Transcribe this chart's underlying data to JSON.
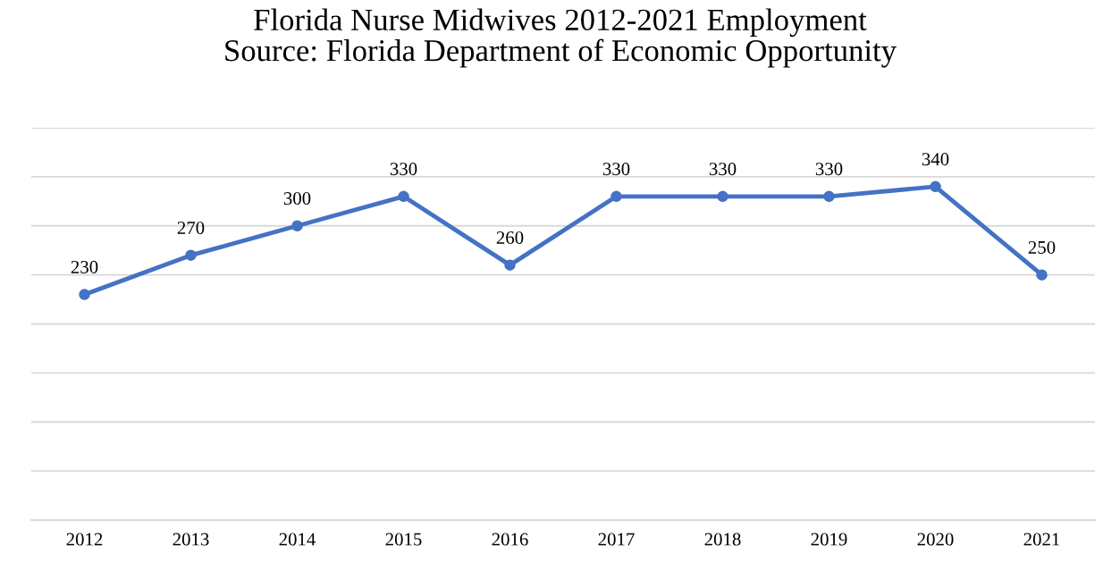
{
  "chart_data": {
    "type": "line",
    "title": "Florida Nurse Midwives 2012-2021 Employment\nSource: Florida Department of Economic Opportunity",
    "categories": [
      "2012",
      "2013",
      "2014",
      "2015",
      "2016",
      "2017",
      "2018",
      "2019",
      "2020",
      "2021"
    ],
    "series": [
      {
        "color": "#4472c4",
        "values": [
          230,
          270,
          300,
          330,
          260,
          330,
          330,
          330,
          340,
          250
        ]
      }
    ],
    "ylim": [
      0,
      400
    ],
    "yticks": [
      {
        "value": 0,
        "label": null
      },
      {
        "value": 50,
        "label": null
      },
      {
        "value": 100,
        "label": null
      },
      {
        "value": 150,
        "label": null
      },
      {
        "value": 200,
        "label": null
      },
      {
        "value": 250,
        "label": null
      },
      {
        "value": 300,
        "label": null
      },
      {
        "value": 350,
        "label": null
      },
      {
        "value": 400,
        "label": null
      }
    ],
    "grid": "y",
    "marker": "circle",
    "line_style": "solid",
    "data_labels": true,
    "tick_labels": "x"
  }
}
